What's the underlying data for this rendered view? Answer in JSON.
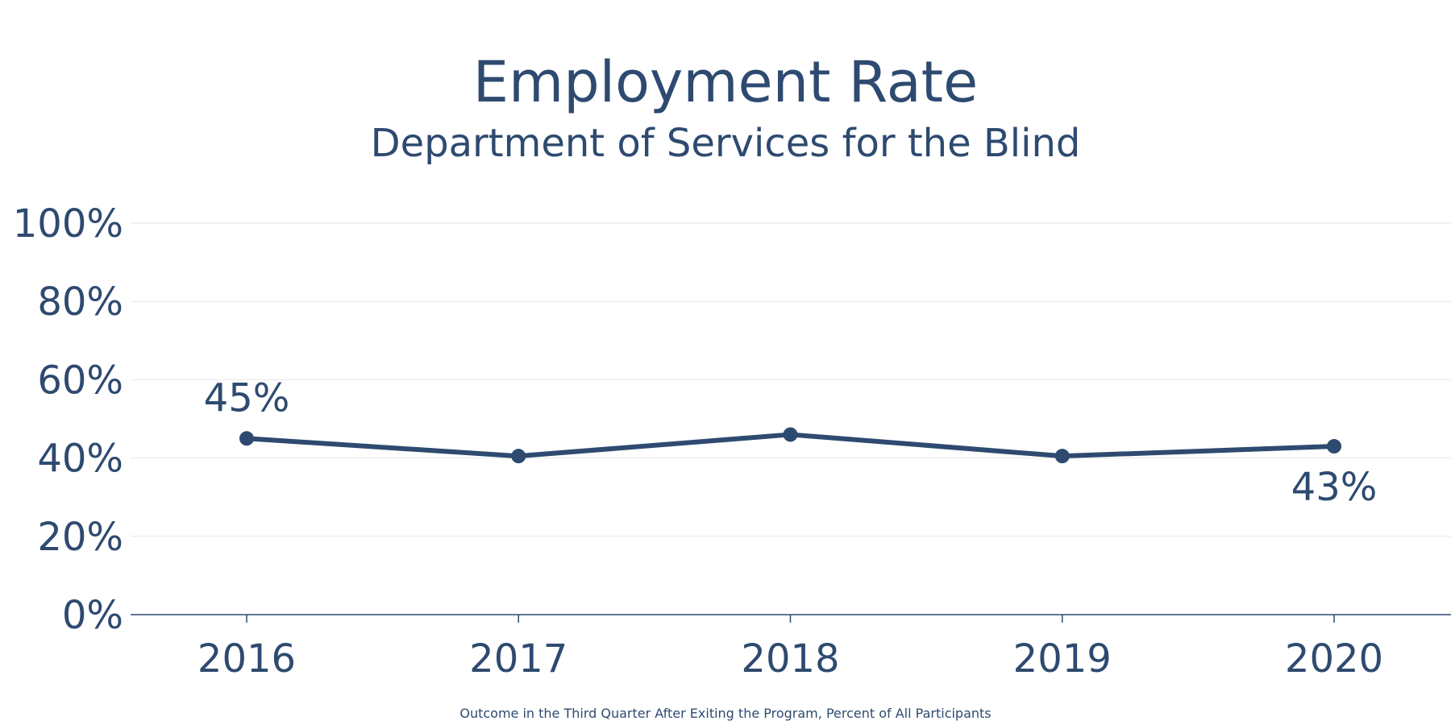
{
  "chart_data": {
    "type": "line",
    "title": "Employment Rate",
    "subtitle": "Department of Services for the Blind",
    "caption": "Outcome in the Third Quarter After Exiting the Program, Percent of All Participants",
    "categories": [
      "2016",
      "2017",
      "2018",
      "2019",
      "2020"
    ],
    "series": [
      {
        "name": "Employment Rate",
        "values": [
          45,
          40.5,
          46,
          40.5,
          43
        ]
      }
    ],
    "data_labels": [
      {
        "index": 0,
        "text": "45%",
        "placement": "above"
      },
      {
        "index": 4,
        "text": "43%",
        "placement": "below"
      }
    ],
    "y_ticks": [
      "0%",
      "20%",
      "40%",
      "60%",
      "80%",
      "100%"
    ],
    "y_tick_values": [
      0,
      20,
      40,
      60,
      80,
      100
    ],
    "ylim": [
      0,
      100
    ],
    "xlabel": "",
    "ylabel": "",
    "grid": true,
    "colors": {
      "line": "#2e4a70",
      "grid": "#e6e6e6",
      "axis": "#2e4a70"
    }
  }
}
